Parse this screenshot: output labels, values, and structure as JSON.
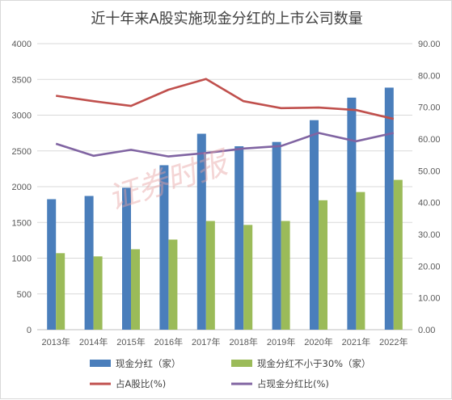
{
  "watermark": "证券时报",
  "chart_data": {
    "type": "bar",
    "title": "近十年来A股实施现金分红的上市公司数量",
    "categories": [
      "2013年",
      "2014年",
      "2015年",
      "2016年",
      "2017年",
      "2018年",
      "2019年",
      "2020年",
      "2021年",
      "2022年"
    ],
    "y_left": {
      "min": 0,
      "max": 4000,
      "step": 500,
      "ticks": [
        "0",
        "500",
        "1000",
        "1500",
        "2000",
        "2500",
        "3000",
        "3500",
        "4000"
      ]
    },
    "y_right": {
      "min": 0,
      "max": 90,
      "step": 10,
      "ticks": [
        "0.00",
        "10.00",
        "20.00",
        "30.00",
        "40.00",
        "50.00",
        "60.00",
        "70.00",
        "80.00",
        "90.00"
      ]
    },
    "grid": true,
    "legend_position": "bottom",
    "series": [
      {
        "name": "现金分红（家）",
        "type": "bar",
        "axis": "left",
        "color": "#4a7ebb",
        "values": [
          1825,
          1870,
          1985,
          2300,
          2740,
          2565,
          2625,
          2930,
          3245,
          3385
        ]
      },
      {
        "name": "现金分红不小于30%（家）",
        "type": "bar",
        "axis": "left",
        "color": "#9bbb59",
        "values": [
          1070,
          1025,
          1125,
          1260,
          1520,
          1465,
          1520,
          1810,
          1925,
          2095
        ]
      },
      {
        "name": "占A股比(%)",
        "type": "line",
        "axis": "right",
        "color": "#c0504d",
        "values": [
          73.6,
          71.9,
          70.4,
          75.5,
          78.9,
          71.9,
          69.7,
          69.9,
          69.1,
          66.3
        ]
      },
      {
        "name": "占现金分红比(%)",
        "type": "line",
        "axis": "right",
        "color": "#8064a2",
        "values": [
          58.5,
          54.7,
          56.6,
          54.5,
          55.6,
          57.0,
          57.8,
          61.9,
          59.3,
          61.9
        ]
      }
    ]
  }
}
